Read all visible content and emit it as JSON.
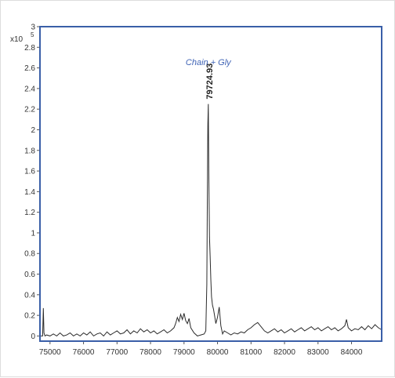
{
  "chart_data": {
    "type": "line",
    "title": "",
    "xlabel": "",
    "ylabel": "",
    "y_scale_label": "x10",
    "y_scale_exponent": "5",
    "xlim": [
      74700,
      84900
    ],
    "ylim": [
      -0.05,
      3.0
    ],
    "grid": false,
    "annotation": "Chain + Gly",
    "peak_label": "79724.93",
    "peak": {
      "x": 79724.93,
      "y": 2.25
    },
    "x_ticks": [
      75000,
      76000,
      77000,
      78000,
      79000,
      80000,
      81000,
      82000,
      83000,
      84000
    ],
    "x_tick_labels": [
      "75000",
      "76000",
      "77000",
      "78000",
      "79000",
      "80000",
      "81000",
      "82000",
      "83000",
      "84000"
    ],
    "y_ticks": [
      0,
      0.2,
      0.4,
      0.6,
      0.8,
      1,
      1.2,
      1.4,
      1.6,
      1.8,
      2,
      2.2,
      2.4,
      2.6,
      2.8,
      3
    ],
    "y_tick_labels": [
      "0",
      "0.2",
      "0.4",
      "0.6",
      "0.8",
      "1",
      "1.2",
      "1.4",
      "1.6",
      "1.8",
      "2",
      "2.2",
      "2.4",
      "2.6",
      "2.8",
      "3"
    ],
    "series": [
      {
        "x": [
          74700,
          74780,
          74800,
          74820,
          74850,
          74900,
          75000,
          75100,
          75200,
          75300,
          75400,
          75500,
          75600,
          75700,
          75800,
          75900,
          76000,
          76100,
          76200,
          76300,
          76400,
          76500,
          76600,
          76700,
          76800,
          76900,
          77000,
          77100,
          77200,
          77300,
          77400,
          77500,
          77600,
          77700,
          77800,
          77900,
          78000,
          78100,
          78200,
          78300,
          78400,
          78500,
          78600,
          78700,
          78750,
          78800,
          78850,
          78900,
          78950,
          79000,
          79050,
          79100,
          79150,
          79200,
          79300,
          79400,
          79500,
          79600,
          79650,
          79680,
          79700,
          79710,
          79724.93,
          79740,
          79760,
          79780,
          79800,
          79820,
          79850,
          79880,
          79900,
          79950,
          80000,
          80050,
          80100,
          80150,
          80200,
          80300,
          80400,
          80500,
          80600,
          80700,
          80800,
          80900,
          81000,
          81100,
          81200,
          81300,
          81400,
          81500,
          81600,
          81700,
          81800,
          81900,
          82000,
          82100,
          82200,
          82300,
          82400,
          82500,
          82600,
          82700,
          82800,
          82900,
          83000,
          83100,
          83200,
          83300,
          83400,
          83500,
          83600,
          83700,
          83800,
          83850,
          83900,
          84000,
          84100,
          84200,
          84300,
          84400,
          84500,
          84600,
          84700,
          84800,
          84900
        ],
        "y": [
          0.0,
          0.0,
          0.27,
          0.03,
          0.0,
          0.01,
          0.0,
          0.02,
          0.0,
          0.03,
          0.0,
          0.01,
          0.03,
          0.0,
          0.02,
          0.0,
          0.03,
          0.01,
          0.04,
          0.0,
          0.02,
          0.03,
          0.0,
          0.04,
          0.01,
          0.03,
          0.05,
          0.02,
          0.03,
          0.06,
          0.02,
          0.05,
          0.03,
          0.07,
          0.04,
          0.06,
          0.03,
          0.05,
          0.02,
          0.04,
          0.06,
          0.03,
          0.05,
          0.08,
          0.12,
          0.18,
          0.14,
          0.21,
          0.16,
          0.22,
          0.15,
          0.12,
          0.17,
          0.08,
          0.03,
          0.0,
          0.01,
          0.02,
          0.05,
          0.5,
          1.5,
          2.05,
          2.25,
          1.6,
          0.96,
          0.78,
          0.55,
          0.38,
          0.3,
          0.26,
          0.22,
          0.12,
          0.18,
          0.28,
          0.1,
          0.02,
          0.05,
          0.03,
          0.01,
          0.03,
          0.02,
          0.04,
          0.03,
          0.06,
          0.08,
          0.11,
          0.13,
          0.09,
          0.05,
          0.03,
          0.05,
          0.07,
          0.04,
          0.06,
          0.03,
          0.05,
          0.07,
          0.04,
          0.06,
          0.08,
          0.05,
          0.07,
          0.09,
          0.06,
          0.08,
          0.05,
          0.07,
          0.09,
          0.06,
          0.08,
          0.05,
          0.07,
          0.1,
          0.16,
          0.08,
          0.05,
          0.07,
          0.06,
          0.09,
          0.06,
          0.1,
          0.07,
          0.11,
          0.08,
          0.06
        ]
      }
    ]
  },
  "colors": {
    "frame": "#3a5fa8",
    "line": "#2b2b2b",
    "annotation": "#3f63b5"
  }
}
